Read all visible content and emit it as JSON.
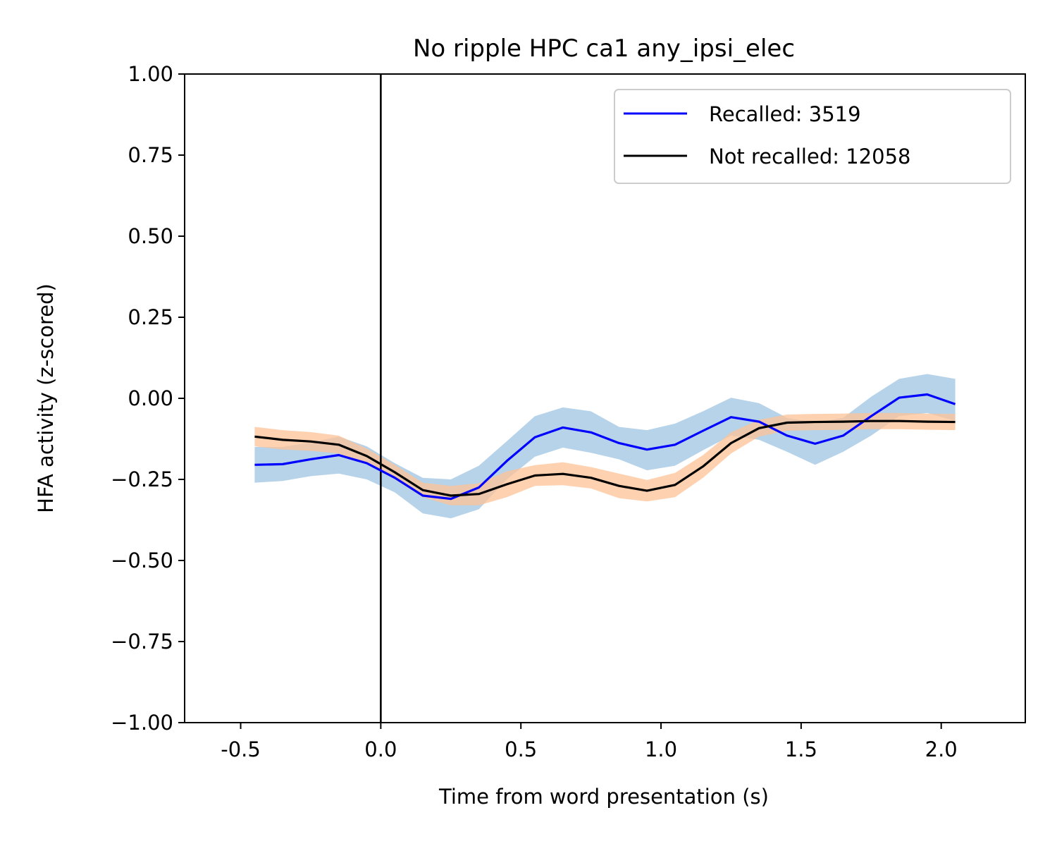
{
  "chart_data": {
    "type": "line",
    "title": "No ripple HPC ca1 any_ipsi_elec",
    "xlabel": "Time from word presentation (s)",
    "ylabel": "HFA activity (z-scored)",
    "xlim": [
      -0.7,
      2.3
    ],
    "ylim": [
      -1.0,
      1.0
    ],
    "xticks": [
      -0.5,
      0.0,
      0.5,
      1.0,
      1.5,
      2.0
    ],
    "xtick_labels": [
      "-0.5",
      "0.0",
      "0.5",
      "1.0",
      "1.5",
      "2.0"
    ],
    "yticks": [
      -1.0,
      -0.75,
      -0.5,
      -0.25,
      0.0,
      0.25,
      0.5,
      0.75,
      1.0
    ],
    "ytick_labels": [
      "−1.00",
      "−0.75",
      "−0.50",
      "−0.25",
      "0.00",
      "0.25",
      "0.50",
      "0.75",
      "1.00"
    ],
    "vline_x": 0.0,
    "grid": false,
    "legend_position": "top-right",
    "x": [
      -0.45,
      -0.35,
      -0.25,
      -0.15,
      -0.05,
      0.05,
      0.15,
      0.25,
      0.35,
      0.45,
      0.55,
      0.65,
      0.75,
      0.85,
      0.95,
      1.05,
      1.15,
      1.25,
      1.35,
      1.45,
      1.55,
      1.65,
      1.75,
      1.85,
      1.95,
      2.05
    ],
    "series": [
      {
        "name": "Recalled: 3519",
        "color": "#0000ff",
        "band_color": "#9ec4e2",
        "values": [
          -0.205,
          -0.203,
          -0.188,
          -0.175,
          -0.2,
          -0.245,
          -0.3,
          -0.31,
          -0.275,
          -0.193,
          -0.12,
          -0.09,
          -0.105,
          -0.138,
          -0.158,
          -0.143,
          -0.1,
          -0.058,
          -0.072,
          -0.115,
          -0.14,
          -0.115,
          -0.055,
          0.002,
          0.012,
          -0.018
        ],
        "lower": [
          -0.26,
          -0.255,
          -0.24,
          -0.232,
          -0.25,
          -0.29,
          -0.355,
          -0.37,
          -0.342,
          -0.25,
          -0.18,
          -0.152,
          -0.168,
          -0.188,
          -0.222,
          -0.208,
          -0.16,
          -0.115,
          -0.128,
          -0.165,
          -0.205,
          -0.165,
          -0.115,
          -0.055,
          -0.045,
          -0.07
        ],
        "upper": [
          -0.15,
          -0.15,
          -0.136,
          -0.118,
          -0.148,
          -0.2,
          -0.245,
          -0.25,
          -0.208,
          -0.132,
          -0.055,
          -0.028,
          -0.04,
          -0.088,
          -0.098,
          -0.078,
          -0.04,
          0.002,
          -0.015,
          -0.06,
          -0.075,
          -0.06,
          0.005,
          0.06,
          0.075,
          0.06
        ]
      },
      {
        "name": "Not recalled: 12058",
        "color": "#000000",
        "band_color": "#fdc396",
        "values": [
          -0.118,
          -0.128,
          -0.133,
          -0.143,
          -0.178,
          -0.228,
          -0.283,
          -0.3,
          -0.295,
          -0.265,
          -0.238,
          -0.233,
          -0.245,
          -0.27,
          -0.285,
          -0.267,
          -0.21,
          -0.138,
          -0.092,
          -0.075,
          -0.073,
          -0.072,
          -0.07,
          -0.07,
          -0.072,
          -0.073
        ],
        "lower": [
          -0.148,
          -0.158,
          -0.162,
          -0.17,
          -0.2,
          -0.25,
          -0.305,
          -0.33,
          -0.33,
          -0.305,
          -0.27,
          -0.268,
          -0.278,
          -0.308,
          -0.318,
          -0.305,
          -0.245,
          -0.17,
          -0.118,
          -0.1,
          -0.098,
          -0.097,
          -0.095,
          -0.095,
          -0.097,
          -0.098
        ],
        "upper": [
          -0.088,
          -0.098,
          -0.104,
          -0.115,
          -0.155,
          -0.205,
          -0.26,
          -0.27,
          -0.262,
          -0.225,
          -0.206,
          -0.197,
          -0.212,
          -0.232,
          -0.252,
          -0.23,
          -0.175,
          -0.105,
          -0.066,
          -0.05,
          -0.048,
          -0.047,
          -0.045,
          -0.045,
          -0.047,
          -0.048
        ]
      }
    ]
  }
}
